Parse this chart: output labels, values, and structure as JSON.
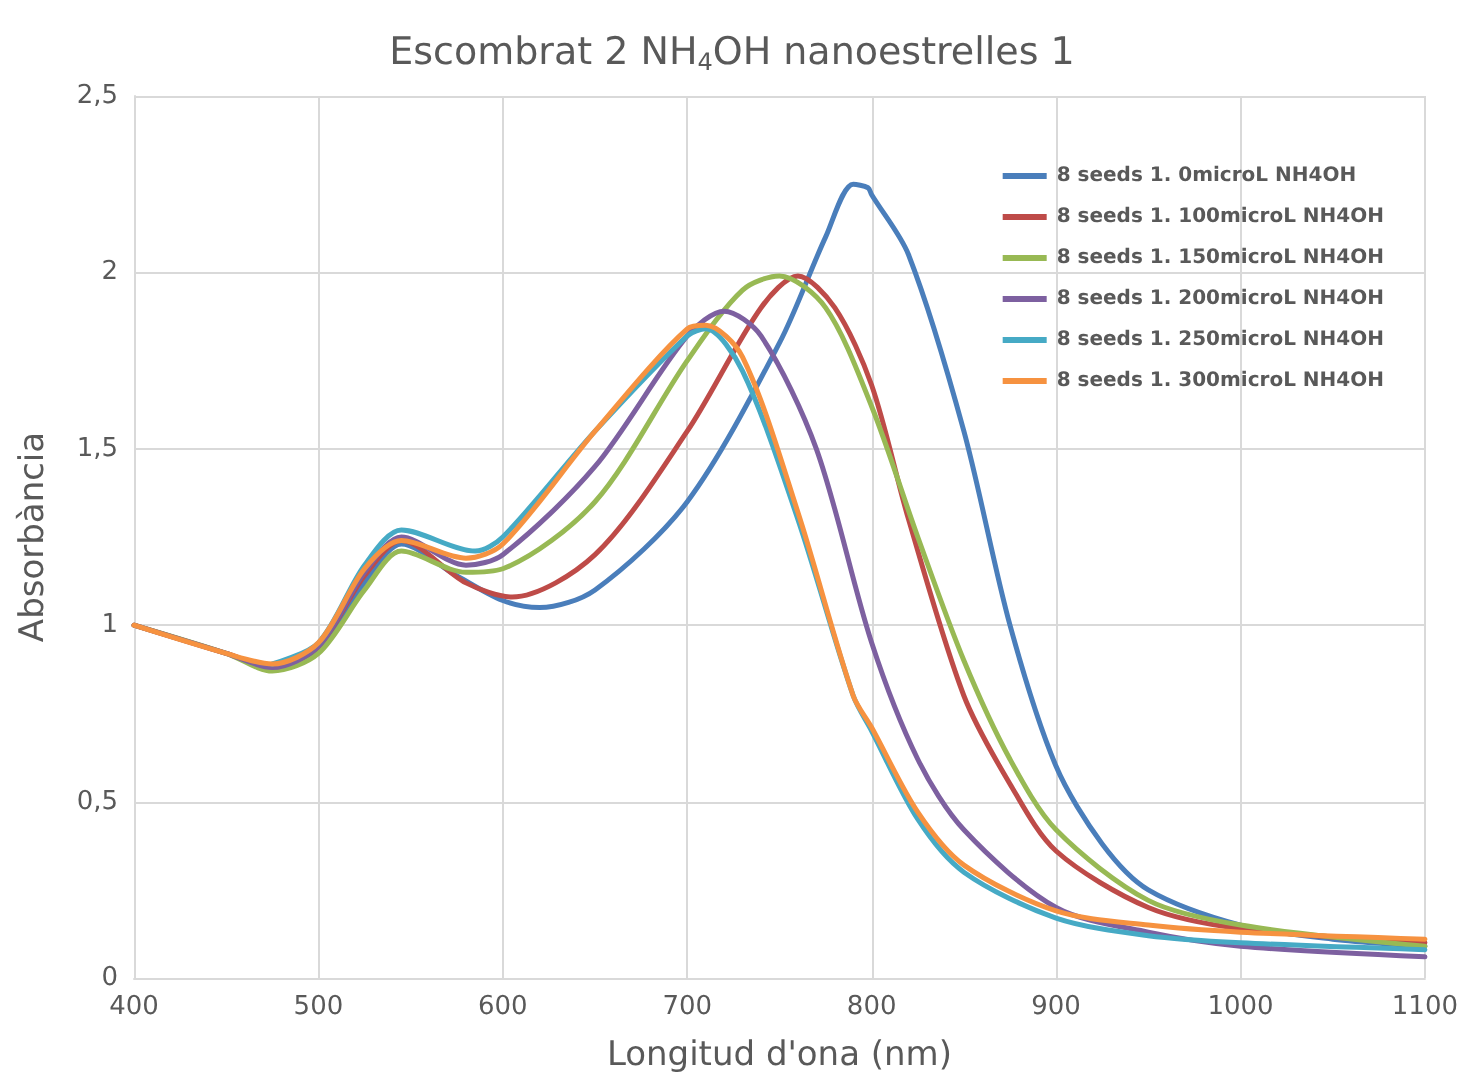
{
  "chart_data": {
    "type": "line",
    "title": "Escombrat 2 NH$_{4}$OH nanoestrelles 1",
    "xlabel": "Longitud d'ona (nm)",
    "ylabel": "Absorbància",
    "xlim": [
      400,
      1100
    ],
    "xticks": [
      400,
      500,
      600,
      700,
      800,
      900,
      1000,
      1100
    ],
    "ylim": [
      0,
      2.5
    ],
    "yticks": [
      0,
      {
        "value": 0.5,
        "label": "0,5"
      },
      1,
      {
        "value": 1.5,
        "label": "1,5"
      },
      2,
      {
        "value": 2.5,
        "label": "2,5"
      }
    ],
    "grid": true,
    "legend": "top right",
    "marker": "none",
    "line_style": "solid",
    "series": [
      {
        "name": "8 seeds 1. 0microL NH4OH",
        "color": "#4a7ebb",
        "x": [
          475,
          500,
          525,
          545,
          575,
          600,
          620,
          650,
          700,
          750,
          775,
          790,
          798,
          800,
          820,
          850,
          875,
          900,
          925,
          950,
          1000,
          1050,
          1100
        ],
        "values": [
          0.88,
          0.93,
          1.12,
          1.23,
          1.14,
          1.07,
          1.05,
          1.1,
          1.35,
          1.8,
          2.1,
          2.25,
          2.24,
          2.22,
          2.05,
          1.55,
          1.0,
          0.6,
          0.38,
          0.25,
          0.15,
          0.11,
          0.09
        ]
      },
      {
        "name": "8 seeds 1. 100microL NH4OH",
        "color": "#be4b48",
        "x": [
          400,
          450,
          475,
          500,
          525,
          545,
          580,
          605,
          650,
          700,
          740,
          760,
          780,
          800,
          820,
          850,
          875,
          900,
          950,
          1000,
          1100
        ],
        "values": [
          1.0,
          0.92,
          0.88,
          0.94,
          1.14,
          1.24,
          1.12,
          1.08,
          1.2,
          1.55,
          1.9,
          1.99,
          1.9,
          1.68,
          1.3,
          0.8,
          0.55,
          0.36,
          0.2,
          0.14,
          0.1
        ]
      },
      {
        "name": "8 seeds 1. 150microL NH4OH",
        "color": "#98b954",
        "x": [
          400,
          450,
          475,
          500,
          525,
          545,
          580,
          600,
          650,
          700,
          730,
          750,
          775,
          800,
          825,
          850,
          875,
          900,
          950,
          1000,
          1100
        ],
        "values": [
          1.0,
          0.92,
          0.87,
          0.92,
          1.1,
          1.21,
          1.15,
          1.16,
          1.35,
          1.75,
          1.95,
          1.99,
          1.9,
          1.62,
          1.25,
          0.9,
          0.62,
          0.42,
          0.22,
          0.15,
          0.09
        ]
      },
      {
        "name": "8 seeds 1. 200microL NH4OH",
        "color": "#7d60a0",
        "x": [
          400,
          450,
          475,
          500,
          525,
          545,
          580,
          600,
          650,
          700,
          720,
          740,
          770,
          800,
          825,
          850,
          900,
          950,
          1000,
          1100
        ],
        "values": [
          1.0,
          0.92,
          0.88,
          0.94,
          1.15,
          1.25,
          1.17,
          1.2,
          1.45,
          1.82,
          1.89,
          1.82,
          1.5,
          0.95,
          0.62,
          0.42,
          0.2,
          0.13,
          0.09,
          0.06
        ]
      },
      {
        "name": "8 seeds 1. 250microL NH4OH",
        "color": "#46aac5",
        "x": [
          475,
          500,
          525,
          545,
          585,
          600,
          650,
          700,
          710,
          730,
          760,
          790,
          800,
          825,
          850,
          900,
          950,
          1000,
          1100
        ],
        "values": [
          0.89,
          0.95,
          1.17,
          1.27,
          1.21,
          1.25,
          1.55,
          1.82,
          1.84,
          1.72,
          1.3,
          0.8,
          0.7,
          0.45,
          0.3,
          0.17,
          0.12,
          0.1,
          0.08
        ]
      },
      {
        "name": "8 seeds 1. 300microL NH4OH",
        "color": "#f69240",
        "x": [
          400,
          450,
          475,
          500,
          525,
          545,
          580,
          600,
          650,
          700,
          710,
          730,
          760,
          790,
          800,
          825,
          850,
          900,
          950,
          1000,
          1100
        ],
        "values": [
          1.0,
          0.92,
          0.89,
          0.95,
          1.16,
          1.24,
          1.19,
          1.23,
          1.55,
          1.84,
          1.85,
          1.76,
          1.32,
          0.8,
          0.71,
          0.47,
          0.32,
          0.19,
          0.15,
          0.13,
          0.11
        ]
      }
    ]
  }
}
